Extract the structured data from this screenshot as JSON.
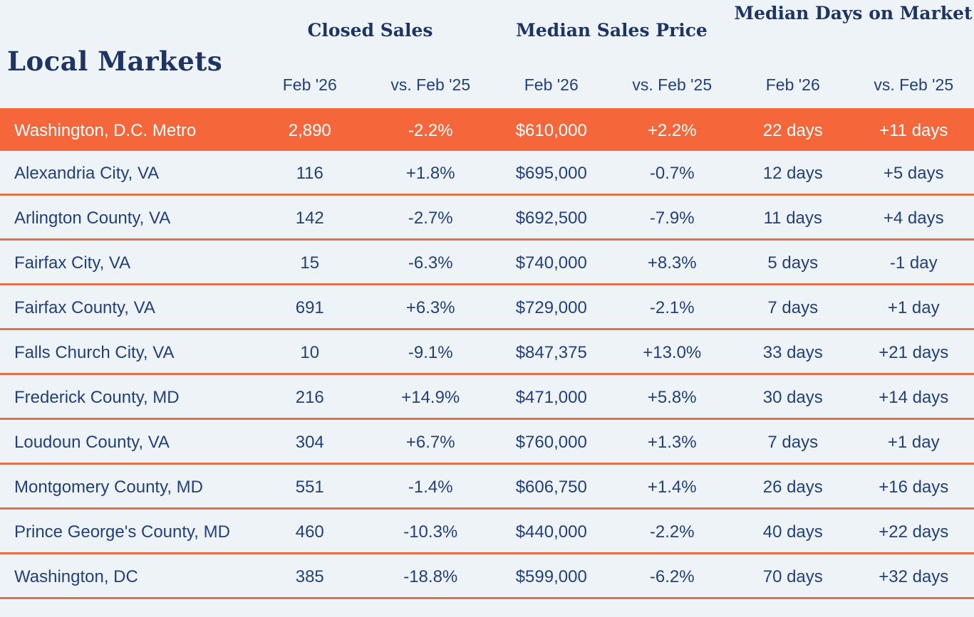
{
  "page": {
    "background_color": "#eef3f8",
    "accent_orange": "#f5673b",
    "separator_orange": "#e0714a",
    "navy_text": "#24407a"
  },
  "header": {
    "title": "Local Markets",
    "groups": [
      {
        "label": "Closed Sales"
      },
      {
        "label": "Median Sales Price"
      },
      {
        "label": "Median Days on Market"
      }
    ],
    "subheaders": [
      "Feb '26",
      "vs. Feb '25",
      "Feb '26",
      "vs. Feb '25",
      "Feb '26",
      "vs. Feb '25"
    ]
  },
  "table": {
    "rows": [
      {
        "market": "Washington, D.C. Metro",
        "highlighted": true,
        "values": [
          "2,890",
          "-2.2%",
          "$610,000",
          "+2.2%",
          "22 days",
          "+11 days"
        ]
      },
      {
        "market": "Alexandria City, VA",
        "highlighted": false,
        "values": [
          "116",
          "+1.8%",
          "$695,000",
          "-0.7%",
          "12 days",
          "+5 days"
        ]
      },
      {
        "market": "Arlington County, VA",
        "highlighted": false,
        "values": [
          "142",
          "-2.7%",
          "$692,500",
          "-7.9%",
          "11 days",
          "+4 days"
        ]
      },
      {
        "market": "Fairfax City, VA",
        "highlighted": false,
        "values": [
          "15",
          "-6.3%",
          "$740,000",
          "+8.3%",
          "5 days",
          "-1 day"
        ]
      },
      {
        "market": "Fairfax County, VA",
        "highlighted": false,
        "values": [
          "691",
          "+6.3%",
          "$729,000",
          "-2.1%",
          "7 days",
          "+1 day"
        ]
      },
      {
        "market": "Falls Church City, VA",
        "highlighted": false,
        "values": [
          "10",
          "-9.1%",
          "$847,375",
          "+13.0%",
          "33 days",
          "+21 days"
        ]
      },
      {
        "market": "Frederick County, MD",
        "highlighted": false,
        "values": [
          "216",
          "+14.9%",
          "$471,000",
          "+5.8%",
          "30 days",
          "+14 days"
        ]
      },
      {
        "market": "Loudoun County, VA",
        "highlighted": false,
        "values": [
          "304",
          "+6.7%",
          "$760,000",
          "+1.3%",
          "7 days",
          "+1 day"
        ]
      },
      {
        "market": "Montgomery County, MD",
        "highlighted": false,
        "values": [
          "551",
          "-1.4%",
          "$606,750",
          "+1.4%",
          "26 days",
          "+16 days"
        ]
      },
      {
        "market": "Prince George's County, MD",
        "highlighted": false,
        "values": [
          "460",
          "-10.3%",
          "$440,000",
          "-2.2%",
          "40 days",
          "+22 days"
        ]
      },
      {
        "market": "Washington, DC",
        "highlighted": false,
        "values": [
          "385",
          "-18.8%",
          "$599,000",
          "-6.2%",
          "70 days",
          "+32 days"
        ]
      }
    ]
  }
}
